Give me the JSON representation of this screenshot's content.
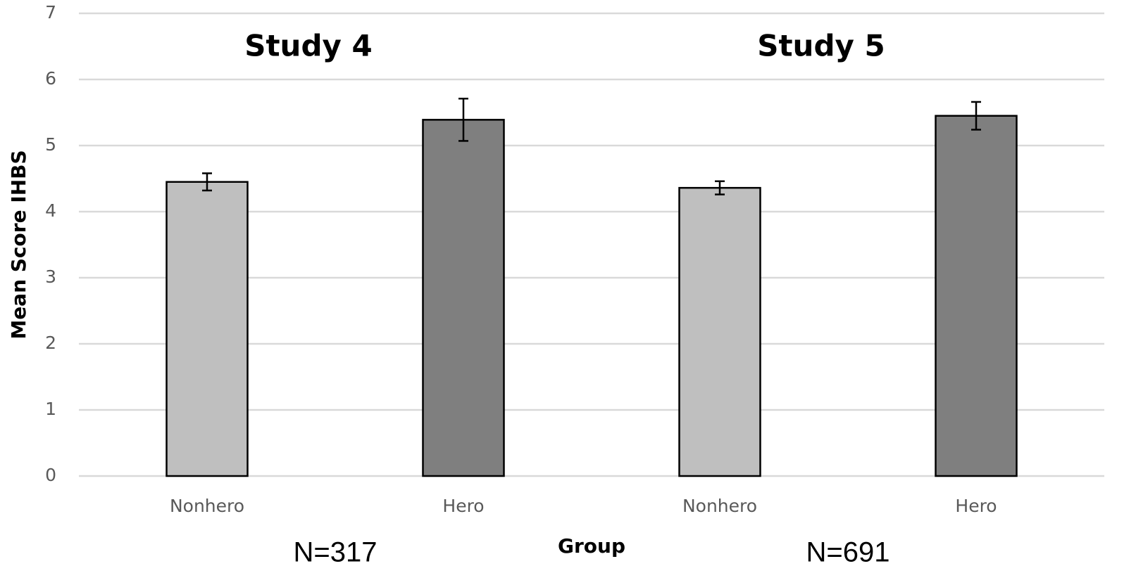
{
  "chart_data": {
    "type": "bar",
    "y_label": "Mean Score IHBS",
    "x_label": "Group",
    "categories": [
      "Nonhero",
      "Hero",
      "Nonhero",
      "Hero"
    ],
    "values": [
      4.45,
      5.39,
      4.36,
      5.45
    ],
    "errors": [
      0.13,
      0.32,
      0.1,
      0.21
    ],
    "colors": [
      "#bfbfbf",
      "#7f7f7f",
      "#bfbfbf",
      "#7f7f7f"
    ],
    "ylim": [
      0,
      7
    ],
    "yticks": [
      0,
      1,
      2,
      3,
      4,
      5,
      6,
      7
    ],
    "grid": true,
    "panels": [
      {
        "title": "Study 4",
        "note": "N=317"
      },
      {
        "title": "Study 5",
        "note": "N=691"
      }
    ]
  }
}
